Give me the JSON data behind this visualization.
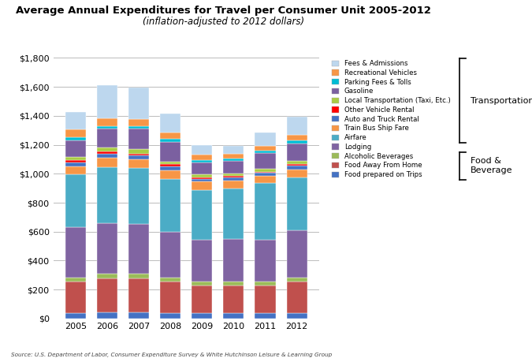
{
  "title": "Average Annual Expenditures for Travel per Consumer Unit 2005-2012",
  "subtitle": "(inflation-adjusted to 2012 dollars)",
  "source": "Source: U.S. Department of Labor, Consumer Expenditure Survey & White Hutchinson Leisure & Learning Group",
  "years": [
    2005,
    2006,
    2007,
    2008,
    2009,
    2010,
    2011,
    2012
  ],
  "categories": [
    "Food prepared on Trips",
    "Food Away From Home",
    "Alcoholic Beverages",
    "Lodging",
    "Airfare",
    "Train Bus Ship Fare",
    "Auto and Truck Rental",
    "Other Vehicle Rental",
    "Local Transportation (Taxi, Etc.)",
    "Gasoline",
    "Parking Fees & Tolls",
    "Recreational Vehicles",
    "Fees & Admissions"
  ],
  "cat_colors": {
    "Food prepared on Trips": "#4472C4",
    "Food Away From Home": "#C0504D",
    "Alcoholic Beverages": "#9BBB59",
    "Lodging": "#8064A2",
    "Airfare": "#4BACC6",
    "Train Bus Ship Fare": "#F79646",
    "Auto and Truck Rental": "#4472C4",
    "Other Vehicle Rental": "#FF0000",
    "Local Transportation (Taxi, Etc.)": "#AACC44",
    "Gasoline": "#7B60A0",
    "Parking Fees & Tolls": "#00BCD4",
    "Recreational Vehicles": "#F79646",
    "Fees & Admissions": "#BDD7EE"
  },
  "data": {
    "Food prepared on Trips": [
      40,
      45,
      45,
      40,
      35,
      35,
      35,
      40
    ],
    "Food Away From Home": [
      215,
      230,
      230,
      215,
      195,
      195,
      195,
      215
    ],
    "Alcoholic Beverages": [
      30,
      35,
      35,
      30,
      25,
      25,
      25,
      30
    ],
    "Lodging": [
      345,
      350,
      345,
      315,
      290,
      295,
      290,
      325
    ],
    "Airfare": [
      365,
      385,
      385,
      365,
      345,
      350,
      390,
      365
    ],
    "Train Bus Ship Fare": [
      55,
      65,
      60,
      60,
      55,
      55,
      50,
      55
    ],
    "Auto and Truck Rental": [
      30,
      30,
      25,
      25,
      20,
      20,
      20,
      25
    ],
    "Other Vehicle Rental": [
      15,
      15,
      15,
      15,
      10,
      10,
      10,
      10
    ],
    "Local Transportation (Taxi, Etc.)": [
      20,
      25,
      30,
      20,
      20,
      15,
      20,
      25
    ],
    "Gasoline": [
      115,
      130,
      140,
      135,
      85,
      90,
      110,
      120
    ],
    "Parking Fees & Tolls": [
      20,
      20,
      20,
      20,
      15,
      15,
      15,
      20
    ],
    "Recreational Vehicles": [
      55,
      55,
      50,
      45,
      35,
      35,
      35,
      40
    ],
    "Fees & Admissions": [
      120,
      225,
      215,
      130,
      70,
      50,
      90,
      125
    ]
  },
  "ylim": [
    0,
    1800
  ],
  "yticks": [
    0,
    200,
    400,
    600,
    800,
    1000,
    1200,
    1400,
    1600,
    1800
  ],
  "bar_width": 0.65,
  "background_color": "#FFFFFF",
  "grid_color": "#BBBBBB",
  "transport_bracket_label": "Transportation",
  "food_bracket_label": "Food &\nBeverage"
}
